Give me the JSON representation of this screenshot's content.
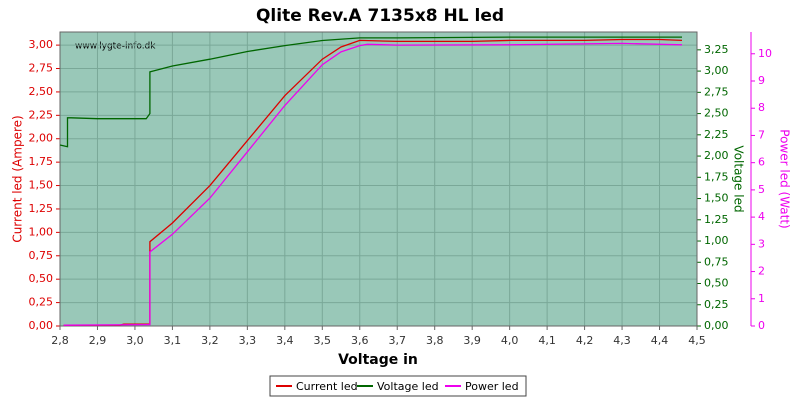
{
  "chart_data": {
    "type": "line",
    "title": "Qlite Rev.A 7135x8 HL led",
    "watermark": "www.lygte-info.dk",
    "x_label": "Voltage in",
    "y_label": "Current led (Ampere)",
    "y2_label": "Voltage led",
    "y3_label": "Power led (Watt)",
    "grid": true,
    "xlim": [
      2.8,
      4.5
    ],
    "xticks": [
      {
        "value": 2.8,
        "label": "2,8"
      },
      {
        "value": 2.9,
        "label": "2,9"
      },
      {
        "value": 3.0,
        "label": "3,0"
      },
      {
        "value": 3.1,
        "label": "3,1"
      },
      {
        "value": 3.2,
        "label": "3,2"
      },
      {
        "value": 3.3,
        "label": "3,3"
      },
      {
        "value": 3.4,
        "label": "3,4"
      },
      {
        "value": 3.5,
        "label": "3,5"
      },
      {
        "value": 3.6,
        "label": "3,6"
      },
      {
        "value": 3.7,
        "label": "3,7"
      },
      {
        "value": 3.8,
        "label": "3,8"
      },
      {
        "value": 3.9,
        "label": "3,9"
      },
      {
        "value": 4.0,
        "label": "4,0"
      },
      {
        "value": 4.1,
        "label": "4,1"
      },
      {
        "value": 4.2,
        "label": "4,2"
      },
      {
        "value": 4.3,
        "label": "4,3"
      },
      {
        "value": 4.4,
        "label": "4,4"
      },
      {
        "value": 4.5,
        "label": "4,5"
      }
    ],
    "ylim": [
      0,
      3.14
    ],
    "yticks": [
      {
        "value": 0,
        "label": "0,00"
      },
      {
        "value": 0.25,
        "label": "0,25"
      },
      {
        "value": 0.5,
        "label": "0,50"
      },
      {
        "value": 0.75,
        "label": "0,75"
      },
      {
        "value": 1.0,
        "label": "1,00"
      },
      {
        "value": 1.25,
        "label": "1,25"
      },
      {
        "value": 1.5,
        "label": "1,50"
      },
      {
        "value": 1.75,
        "label": "1,75"
      },
      {
        "value": 2.0,
        "label": "2,00"
      },
      {
        "value": 2.25,
        "label": "2,25"
      },
      {
        "value": 2.5,
        "label": "2,50"
      },
      {
        "value": 2.75,
        "label": "2,75"
      },
      {
        "value": 3.0,
        "label": "3,00"
      }
    ],
    "y2lim": [
      0,
      3.46
    ],
    "y2ticks": [
      {
        "value": 0,
        "label": "0,00"
      },
      {
        "value": 0.25,
        "label": "0,25"
      },
      {
        "value": 0.5,
        "label": "0,50"
      },
      {
        "value": 0.75,
        "label": "0,75"
      },
      {
        "value": 1.0,
        "label": "1,00"
      },
      {
        "value": 1.25,
        "label": "1,25"
      },
      {
        "value": 1.5,
        "label": "1,50"
      },
      {
        "value": 1.75,
        "label": "1,75"
      },
      {
        "value": 2.0,
        "label": "2,00"
      },
      {
        "value": 2.25,
        "label": "2,25"
      },
      {
        "value": 2.5,
        "label": "2,50"
      },
      {
        "value": 2.75,
        "label": "2,75"
      },
      {
        "value": 3.0,
        "label": "3,00"
      },
      {
        "value": 3.25,
        "label": "3,25"
      }
    ],
    "y3lim": [
      0,
      10.8
    ],
    "y3ticks": [
      0,
      1,
      2,
      3,
      4,
      5,
      6,
      7,
      8,
      9,
      10
    ],
    "series": [
      {
        "name": "Current led",
        "color": "#dd0000",
        "axis": "y",
        "x": [
          2.81,
          2.9,
          2.96,
          2.97,
          3.03,
          3.04,
          3.04,
          3.1,
          3.2,
          3.3,
          3.4,
          3.5,
          3.55,
          3.6,
          3.7,
          3.9,
          4.0,
          4.2,
          4.3,
          4.4,
          4.46
        ],
        "values": [
          0.01,
          0.01,
          0.01,
          0.02,
          0.02,
          0.02,
          0.9,
          1.1,
          1.5,
          1.98,
          2.46,
          2.85,
          2.98,
          3.05,
          3.04,
          3.04,
          3.05,
          3.05,
          3.06,
          3.06,
          3.05
        ]
      },
      {
        "name": "Voltage led",
        "color": "#006600",
        "axis": "y2",
        "x": [
          2.8,
          2.82,
          2.82,
          2.83,
          2.9,
          3.03,
          3.04,
          3.04,
          3.1,
          3.2,
          3.3,
          3.4,
          3.5,
          3.6,
          3.7,
          4.0,
          4.46
        ],
        "values": [
          2.13,
          2.11,
          2.45,
          2.45,
          2.44,
          2.44,
          2.5,
          2.99,
          3.06,
          3.14,
          3.23,
          3.3,
          3.36,
          3.39,
          3.39,
          3.4,
          3.4
        ]
      },
      {
        "name": "Power led",
        "color": "#ee00ee",
        "axis": "y3",
        "x": [
          2.81,
          3.03,
          3.04,
          3.04,
          3.1,
          3.2,
          3.3,
          3.4,
          3.5,
          3.55,
          3.6,
          3.62,
          3.7,
          4.0,
          4.3,
          4.46
        ],
        "values": [
          0.03,
          0.05,
          0.05,
          2.72,
          3.37,
          4.7,
          6.4,
          8.1,
          9.6,
          10.07,
          10.3,
          10.35,
          10.32,
          10.33,
          10.38,
          10.33
        ]
      }
    ]
  }
}
